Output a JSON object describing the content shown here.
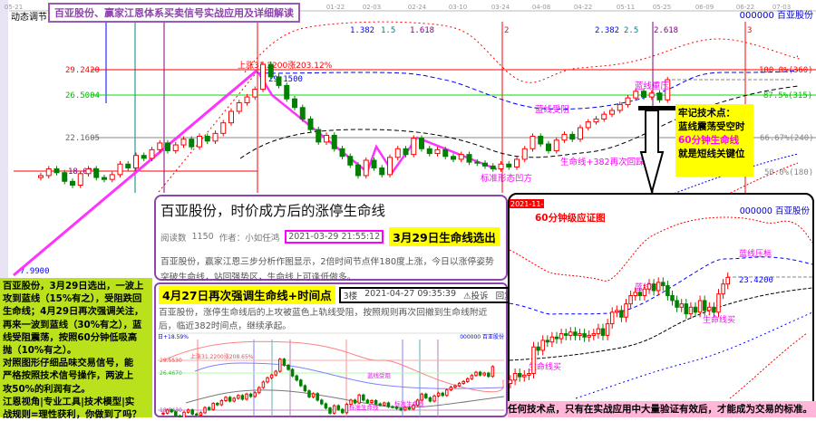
{
  "title_banner": "百亚股份、赢家江恩体系买卖信号实战应用及详细解读",
  "top_left_label": "动态调节",
  "stock_label": "000000 百亚股份",
  "date_ticks": [
    "05-21",
    "01-22",
    "02-03",
    "02-24",
    "03-10",
    "03-24",
    "04-08",
    "04-22",
    "05-11",
    "05-25",
    "06-09",
    "06-22",
    "07-03"
  ],
  "price_levels": {
    "l1": "29.2420",
    "l2": "26.5004",
    "l3": "22.1605",
    "l4": "18.0?9",
    "low": "7.9900",
    "peak": "上涨31.2200涨203.12%",
    "sub_peak": "29.1500"
  },
  "fib_time_labels": [
    "1.382",
    "1.5",
    "1.618",
    "2",
    "2.382",
    "2.5",
    "2.618",
    "3"
  ],
  "pct_labels": [
    "100.0%(360)",
    "87.5%(315)",
    "66.67%(240)",
    "50.0%(180)"
  ],
  "annotations": {
    "blue_resist": "蓝线受阻",
    "blue_press": "蓝线重压",
    "life_382": "生命线+382再次回踩",
    "standard": "标准形态凹方"
  },
  "note_box": {
    "line1": "牢记技术点：",
    "line2": "蓝线震荡受空时",
    "line3": "60分钟生命线",
    "line4": "就是短线关键位"
  },
  "article1": {
    "title": "百亚股份，时价成方后的涨停生命线",
    "reads_label": "阅读数",
    "reads": "1150",
    "author": "作者：小如任鸿",
    "datetime": "2021-03-29 21:55:12",
    "highlight": "3月29日生命线选出",
    "body": "百亚股份，赢家江恩三步分析作图显示，2倍时间节点伴180度上涨，今日以涨停姿势突破生命线，站回强势区，生命线上可逢低做多。"
  },
  "article2": {
    "highlight": "4月27日再次强调生命线+时间点",
    "floor": "3楼",
    "datetime": "2021-04-27 09:35:39",
    "report": "⚠投诉",
    "reply": "回复",
    "body": "百亚股份，涨停生命线后的上攻被蓝色上轨线受阻，按照规则再次回撤到生命线附近后，临近382时间点，继续承起。",
    "mini_labels": {
      "top_left": "日+18.59%",
      "stock": "000000 百亚股份",
      "p1": "29.5530",
      "p2": "26.4670",
      "p3": "18.8430",
      "peak": "上涨31.2200涨208.65%",
      "blue_press": "蓝线受阻",
      "life1": "标准生命线",
      "life2": "标准生命线"
    }
  },
  "left_note": {
    "lines": [
      "百亚股份，3月29日选出，一波上",
      "攻到蓝线（15%有之），受阻跌回",
      "生命线；4月29日再次强调关注，",
      "再来一波到蓝线（30%有之），蓝",
      "线受阻震荡，按照60分钟低吸高",
      "抛（10%有之）。",
      "对照图形仔细品味交易信号，能",
      "严格按照技术信号操作，两波上",
      "攻50%的利润有之。",
      "江恩视角|专业工具|技术模型|实",
      "战规则=理性获利，你做到了吗？"
    ]
  },
  "chart60": {
    "date_badge": "2021-11-22",
    "title": "60分钟级应证图",
    "stock": "000000 百亚股份",
    "price": "23.4200",
    "blue_press": "蓝线压标",
    "blue_hit": "蓝线关",
    "life_buy1": "生命线买",
    "life_buy2": "生命线买"
  },
  "footer": "任何技术点，只有在实战应用中大量验证有效后，才能成为交易的标准。",
  "colors": {
    "up": "#ff0000",
    "down": "#008000",
    "fib_line": "#ff00ff",
    "banner": "#8e44ad",
    "note_bg": "#ffff00",
    "left_note_bg": "#b9e21c",
    "footer_bg": "#ffb6d9"
  },
  "chart_data": {
    "type": "candlestick",
    "title": "",
    "price_levels": [
      29.242,
      26.5004,
      22.1605,
      7.99
    ],
    "peak": 31.22,
    "closes": [
      18.2,
      18.9,
      18.5,
      17.6,
      17.2,
      18.4,
      18.9,
      18.0,
      17.8,
      18.3,
      19.4,
      19.0,
      20.3,
      20.0,
      20.9,
      21.6,
      20.8,
      21.4,
      22.0,
      21.2,
      22.3,
      21.8,
      22.6,
      23.7,
      24.9,
      25.8,
      26.4,
      27.2,
      29.8,
      28.5,
      27.6,
      26.2,
      25.3,
      24.1,
      23.0,
      21.7,
      22.4,
      21.0,
      20.2,
      19.3,
      18.2,
      19.8,
      19.0,
      18.3,
      20.1,
      21.0,
      20.4,
      22.1,
      21.0,
      20.5,
      20.9,
      20.2,
      19.9,
      20.4,
      19.6,
      19.5,
      19.2,
      18.9,
      19.4,
      19.1,
      19.9,
      21.0,
      22.3,
      21.5,
      20.8,
      21.9,
      22.5,
      22.0,
      23.2,
      23.8,
      24.1,
      24.6,
      25.0,
      25.6,
      26.3,
      27.0,
      26.4,
      26.8,
      26.1,
      28.2
    ],
    "closes_60min": [
      17.2,
      17.6,
      17.4,
      17.5,
      17.6,
      19.2,
      19.0,
      19.6,
      19.5,
      19.8,
      19.7,
      20.0,
      19.9,
      20.1,
      19.9,
      20.0,
      19.8,
      19.9,
      20.0,
      20.3,
      19.9,
      20.6,
      21.3,
      21.4,
      21.0,
      21.8,
      22.3,
      22.5,
      22.3,
      22.7,
      23.0,
      22.6,
      23.1,
      22.9,
      22.3,
      22.0,
      21.6,
      21.8,
      21.2,
      21.6,
      21.3,
      22.0,
      21.4,
      21.6,
      21.3,
      22.4,
      23.0,
      23.4
    ]
  }
}
